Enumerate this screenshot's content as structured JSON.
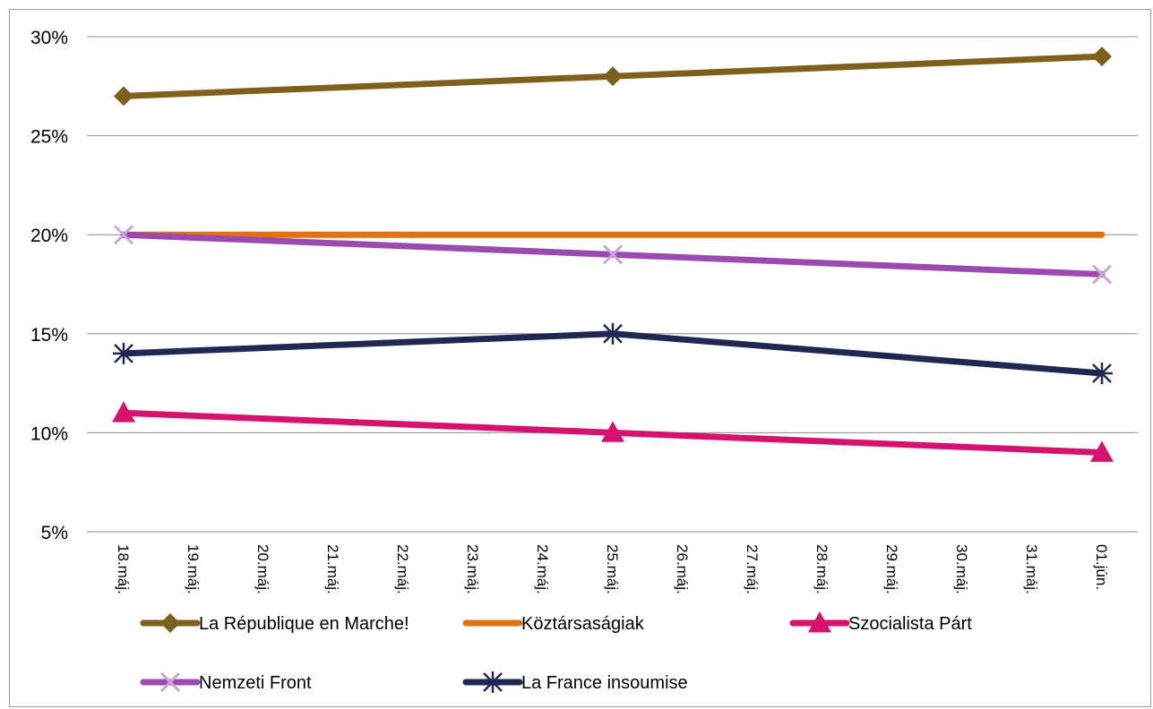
{
  "chart_data": {
    "type": "line",
    "title": "",
    "xlabel": "",
    "ylabel": "",
    "categories": [
      "18.máj.",
      "19.máj.",
      "20.máj.",
      "21.máj.",
      "22.máj.",
      "23.máj.",
      "24.máj.",
      "25.máj.",
      "26.máj.",
      "27.máj.",
      "28.máj.",
      "29.máj.",
      "30.máj.",
      "31.máj.",
      "01.jún."
    ],
    "y_ticks": [
      "5%",
      "10%",
      "15%",
      "20%",
      "25%",
      "30%"
    ],
    "ylim": [
      5,
      30
    ],
    "grid": "horizontal",
    "legend_position": "bottom",
    "series": [
      {
        "name": "La République en Marche!",
        "color": "#7f5f1e",
        "marker": "diamond",
        "points": [
          {
            "x": "18.máj.",
            "y": 27
          },
          {
            "x": "25.máj.",
            "y": 28
          },
          {
            "x": "01.jún.",
            "y": 29
          }
        ]
      },
      {
        "name": "Köztársaságiak",
        "color": "#e3730f",
        "marker": "none",
        "points": [
          {
            "x": "18.máj.",
            "y": 20
          },
          {
            "x": "25.máj.",
            "y": 20
          },
          {
            "x": "01.jún.",
            "y": 20
          }
        ]
      },
      {
        "name": "Szocialista Párt",
        "color": "#d5136e",
        "marker": "triangle",
        "points": [
          {
            "x": "18.máj.",
            "y": 11
          },
          {
            "x": "25.máj.",
            "y": 10
          },
          {
            "x": "01.jún.",
            "y": 9
          }
        ]
      },
      {
        "name": "Nemzeti Front",
        "color": "#9a4ab0",
        "marker": "x",
        "points": [
          {
            "x": "18.máj.",
            "y": 20
          },
          {
            "x": "25.máj.",
            "y": 19
          },
          {
            "x": "01.jún.",
            "y": 18
          }
        ]
      },
      {
        "name": "La France insoumise",
        "color": "#1f2752",
        "marker": "star",
        "points": [
          {
            "x": "18.máj.",
            "y": 14
          },
          {
            "x": "25.máj.",
            "y": 15
          },
          {
            "x": "01.jún.",
            "y": 13
          }
        ]
      }
    ]
  }
}
